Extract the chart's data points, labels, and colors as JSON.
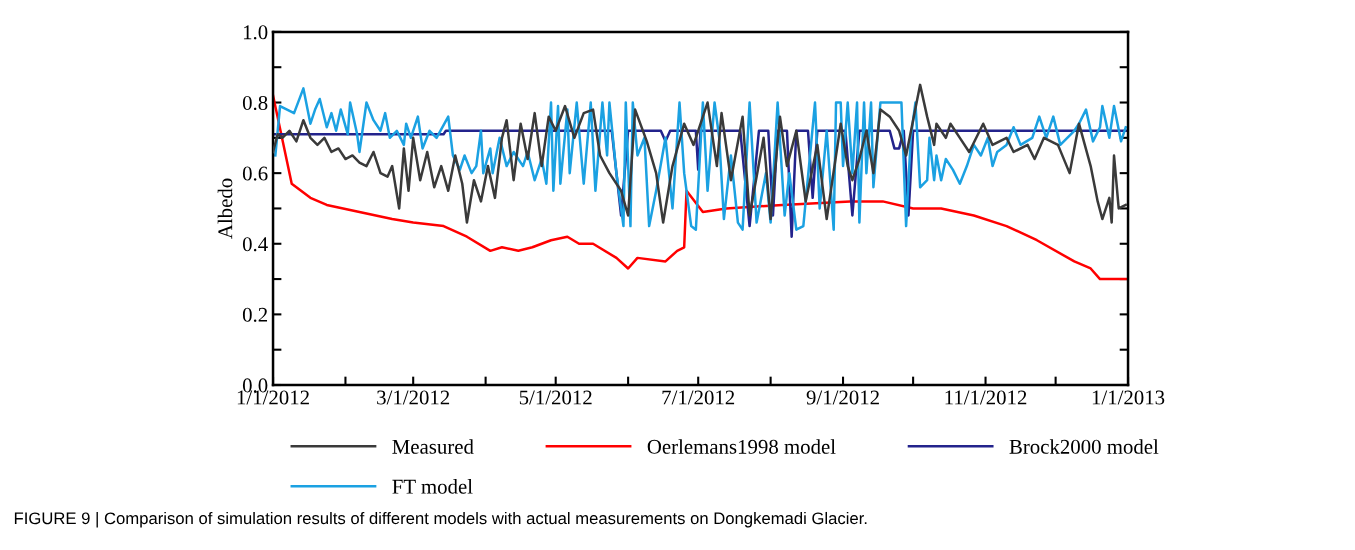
{
  "chart_data": {
    "type": "line",
    "ylabel": "Albedo",
    "xlim": [
      "2012-01-01",
      "2013-01-01"
    ],
    "xticks": [
      {
        "value": "2012-01-01",
        "label": "1/1/2012"
      },
      {
        "value": "2012-02-01",
        "label": null
      },
      {
        "value": "2012-03-01",
        "label": "3/1/2012"
      },
      {
        "value": "2012-04-01",
        "label": null
      },
      {
        "value": "2012-05-01",
        "label": "5/1/2012"
      },
      {
        "value": "2012-06-01",
        "label": null
      },
      {
        "value": "2012-07-01",
        "label": "7/1/2012"
      },
      {
        "value": "2012-08-01",
        "label": null
      },
      {
        "value": "2012-09-01",
        "label": "9/1/2012"
      },
      {
        "value": "2012-10-01",
        "label": null
      },
      {
        "value": "2012-11-01",
        "label": "11/1/2012"
      },
      {
        "value": "2012-12-01",
        "label": null
      },
      {
        "value": "2013-01-01",
        "label": "1/1/2013"
      }
    ],
    "ylim": [
      0.0,
      1.0
    ],
    "yticks": [
      {
        "value": 0.0,
        "label": "0.0"
      },
      {
        "value": 0.1,
        "label": null
      },
      {
        "value": 0.2,
        "label": "0.2"
      },
      {
        "value": 0.3,
        "label": null
      },
      {
        "value": 0.4,
        "label": "0.4"
      },
      {
        "value": 0.5,
        "label": null
      },
      {
        "value": 0.6,
        "label": "0.6"
      },
      {
        "value": 0.7,
        "label": null
      },
      {
        "value": 0.8,
        "label": "0.8"
      },
      {
        "value": 0.9,
        "label": null
      },
      {
        "value": 1.0,
        "label": "1.0"
      }
    ],
    "legend": "bottom",
    "line_style": "solid",
    "annotations": [
      "FIGURE 9 | Comparison of simulation results of different models with actual measurements on Dongkemadi Glacier."
    ],
    "series": [
      {
        "name": "Measured",
        "color": "#3a3a3a",
        "x": [
          "2012-01-01",
          "2012-01-03",
          "2012-01-05",
          "2012-01-08",
          "2012-01-11",
          "2012-01-14",
          "2012-01-17",
          "2012-01-20",
          "2012-01-23",
          "2012-01-26",
          "2012-01-29",
          "2012-02-01",
          "2012-02-04",
          "2012-02-07",
          "2012-02-10",
          "2012-02-13",
          "2012-02-16",
          "2012-02-19",
          "2012-02-21",
          "2012-02-24",
          "2012-02-26",
          "2012-02-28",
          "2012-03-01",
          "2012-03-04",
          "2012-03-07",
          "2012-03-10",
          "2012-03-13",
          "2012-03-16",
          "2012-03-19",
          "2012-03-22",
          "2012-03-24",
          "2012-03-27",
          "2012-03-30",
          "2012-04-02",
          "2012-04-05",
          "2012-04-08",
          "2012-04-10",
          "2012-04-13",
          "2012-04-16",
          "2012-04-19",
          "2012-04-22",
          "2012-04-25",
          "2012-04-28",
          "2012-05-01",
          "2012-05-05",
          "2012-05-09",
          "2012-05-13",
          "2012-05-17",
          "2012-05-20",
          "2012-05-24",
          "2012-05-29",
          "2012-06-01",
          "2012-06-04",
          "2012-06-09",
          "2012-06-13",
          "2012-06-16",
          "2012-06-20",
          "2012-06-25",
          "2012-06-29",
          "2012-07-05",
          "2012-07-09",
          "2012-07-11",
          "2012-07-15",
          "2012-07-20",
          "2012-07-23",
          "2012-07-29",
          "2012-08-01",
          "2012-08-05",
          "2012-08-08",
          "2012-08-12",
          "2012-08-16",
          "2012-08-21",
          "2012-08-25",
          "2012-08-31",
          "2012-09-03",
          "2012-09-05",
          "2012-09-08",
          "2012-09-11",
          "2012-09-14",
          "2012-09-17",
          "2012-09-21",
          "2012-09-25",
          "2012-09-28",
          "2012-10-04",
          "2012-10-07",
          "2012-10-10",
          "2012-10-11",
          "2012-10-15",
          "2012-10-17",
          "2012-10-21",
          "2012-10-25",
          "2012-10-31",
          "2012-11-04",
          "2012-11-10",
          "2012-11-13",
          "2012-11-19",
          "2012-11-22",
          "2012-11-26",
          "2012-12-02",
          "2012-12-07",
          "2012-12-11",
          "2012-12-16",
          "2012-12-19",
          "2012-12-21",
          "2012-12-24",
          "2012-12-25",
          "2012-12-26",
          "2012-12-28",
          "2012-12-31"
        ],
        "values": [
          0.66,
          0.71,
          0.7,
          0.72,
          0.69,
          0.75,
          0.7,
          0.68,
          0.7,
          0.66,
          0.67,
          0.64,
          0.65,
          0.63,
          0.62,
          0.66,
          0.6,
          0.59,
          0.62,
          0.5,
          0.67,
          0.55,
          0.7,
          0.58,
          0.66,
          0.56,
          0.62,
          0.55,
          0.65,
          0.57,
          0.46,
          0.58,
          0.52,
          0.62,
          0.53,
          0.7,
          0.75,
          0.58,
          0.74,
          0.64,
          0.77,
          0.62,
          0.76,
          0.72,
          0.79,
          0.7,
          0.77,
          0.78,
          0.65,
          0.6,
          0.55,
          0.48,
          0.78,
          0.69,
          0.6,
          0.46,
          0.62,
          0.74,
          0.68,
          0.8,
          0.62,
          0.77,
          0.58,
          0.76,
          0.48,
          0.7,
          0.47,
          0.76,
          0.62,
          0.72,
          0.52,
          0.68,
          0.47,
          0.74,
          0.62,
          0.58,
          0.64,
          0.72,
          0.6,
          0.78,
          0.76,
          0.72,
          0.65,
          0.85,
          0.76,
          0.68,
          0.74,
          0.7,
          0.74,
          0.7,
          0.66,
          0.74,
          0.68,
          0.7,
          0.66,
          0.68,
          0.64,
          0.7,
          0.68,
          0.6,
          0.74,
          0.62,
          0.52,
          0.47,
          0.53,
          0.46,
          0.65,
          0.5,
          0.51
        ]
      },
      {
        "name": "Oerlemans1998 model",
        "color": "#ff0000",
        "x": [
          "2012-01-01",
          "2012-01-09",
          "2012-01-17",
          "2012-01-24",
          "2012-02-07",
          "2012-02-21",
          "2012-03-01",
          "2012-03-14",
          "2012-03-24",
          "2012-04-03",
          "2012-04-08",
          "2012-04-15",
          "2012-04-21",
          "2012-04-29",
          "2012-05-06",
          "2012-05-11",
          "2012-05-17",
          "2012-05-27",
          "2012-06-01",
          "2012-06-05",
          "2012-06-17",
          "2012-06-22",
          "2012-06-25",
          "2012-06-26",
          "2012-07-03",
          "2012-07-13",
          "2012-08-06",
          "2012-09-04",
          "2012-09-18",
          "2012-10-01",
          "2012-10-13",
          "2012-10-27",
          "2012-11-10",
          "2012-11-23",
          "2012-12-09",
          "2012-12-16",
          "2012-12-20",
          "2013-01-01"
        ],
        "values": [
          0.82,
          0.57,
          0.53,
          0.51,
          0.49,
          0.47,
          0.46,
          0.45,
          0.42,
          0.38,
          0.39,
          0.38,
          0.39,
          0.41,
          0.42,
          0.4,
          0.4,
          0.36,
          0.33,
          0.36,
          0.35,
          0.38,
          0.39,
          0.55,
          0.49,
          0.5,
          0.51,
          0.52,
          0.52,
          0.5,
          0.5,
          0.48,
          0.45,
          0.41,
          0.35,
          0.33,
          0.3,
          0.3
        ]
      },
      {
        "name": "Brock2000 model",
        "color": "#23238c",
        "x": [
          "2012-01-01",
          "2012-03-14",
          "2012-03-15",
          "2012-05-25",
          "2012-05-29",
          "2012-06-01",
          "2012-06-15",
          "2012-06-17",
          "2012-06-19",
          "2012-06-30",
          "2012-07-01",
          "2012-07-02",
          "2012-07-19",
          "2012-07-23",
          "2012-07-27",
          "2012-07-31",
          "2012-08-02",
          "2012-08-04",
          "2012-08-08",
          "2012-08-10",
          "2012-08-12",
          "2012-08-17",
          "2012-08-19",
          "2012-08-21",
          "2012-09-02",
          "2012-09-05",
          "2012-09-08",
          "2012-09-21",
          "2012-09-23",
          "2012-09-25",
          "2012-09-27",
          "2012-09-29",
          "2012-10-01",
          "2013-01-01"
        ],
        "values": [
          0.71,
          0.71,
          0.72,
          0.72,
          0.48,
          0.72,
          0.72,
          0.69,
          0.72,
          0.72,
          0.61,
          0.72,
          0.72,
          0.45,
          0.72,
          0.72,
          0.48,
          0.72,
          0.72,
          0.42,
          0.72,
          0.72,
          0.53,
          0.72,
          0.72,
          0.48,
          0.72,
          0.72,
          0.67,
          0.67,
          0.72,
          0.48,
          0.72,
          0.72
        ]
      },
      {
        "name": "FT model",
        "color": "#1ba1e2",
        "x": [
          "2012-01-02",
          "2012-01-04",
          "2012-01-10",
          "2012-01-14",
          "2012-01-17",
          "2012-01-19",
          "2012-01-21",
          "2012-01-24",
          "2012-01-26",
          "2012-01-28",
          "2012-01-30",
          "2012-02-02",
          "2012-02-03",
          "2012-02-06",
          "2012-02-07",
          "2012-02-10",
          "2012-02-13",
          "2012-02-16",
          "2012-02-18",
          "2012-02-20",
          "2012-02-23",
          "2012-02-26",
          "2012-02-27",
          "2012-02-29",
          "2012-03-03",
          "2012-03-05",
          "2012-03-08",
          "2012-03-11",
          "2012-03-16",
          "2012-03-18",
          "2012-03-21",
          "2012-03-23",
          "2012-03-26",
          "2012-03-28",
          "2012-03-30",
          "2012-03-31",
          "2012-04-03",
          "2012-04-04",
          "2012-04-07",
          "2012-04-10",
          "2012-04-13",
          "2012-04-17",
          "2012-04-19",
          "2012-04-22",
          "2012-04-25",
          "2012-04-27",
          "2012-04-29",
          "2012-04-30",
          "2012-05-02",
          "2012-05-03",
          "2012-05-06",
          "2012-05-07",
          "2012-05-10",
          "2012-05-13",
          "2012-05-16",
          "2012-05-18",
          "2012-05-21",
          "2012-05-23",
          "2012-05-24",
          "2012-05-27",
          "2012-05-30",
          "2012-05-31",
          "2012-06-02",
          "2012-06-03",
          "2012-06-05",
          "2012-06-08",
          "2012-06-10",
          "2012-06-13",
          "2012-06-17",
          "2012-06-20",
          "2012-06-23",
          "2012-06-25",
          "2012-06-28",
          "2012-06-30",
          "2012-07-03",
          "2012-07-05",
          "2012-07-08",
          "2012-07-10",
          "2012-07-12",
          "2012-07-15",
          "2012-07-18",
          "2012-07-20",
          "2012-07-23",
          "2012-07-26",
          "2012-07-30",
          "2012-08-01",
          "2012-08-04",
          "2012-08-07",
          "2012-08-09",
          "2012-08-12",
          "2012-08-15",
          "2012-08-20",
          "2012-08-22",
          "2012-08-25",
          "2012-08-28",
          "2012-08-29",
          "2012-08-31",
          "2012-09-01",
          "2012-09-03",
          "2012-09-05",
          "2012-09-07",
          "2012-09-08",
          "2012-09-10",
          "2012-09-11",
          "2012-09-13",
          "2012-09-14",
          "2012-09-17",
          "2012-09-26",
          "2012-09-28",
          "2012-09-30",
          "2012-10-02",
          "2012-10-04",
          "2012-10-07",
          "2012-10-08",
          "2012-10-10",
          "2012-10-11",
          "2012-10-13",
          "2012-10-15",
          "2012-10-18",
          "2012-10-21",
          "2012-10-24",
          "2012-10-27",
          "2012-10-30",
          "2012-11-02",
          "2012-11-04",
          "2012-11-06",
          "2012-11-10",
          "2012-11-13",
          "2012-11-16",
          "2012-11-21",
          "2012-11-24",
          "2012-11-27",
          "2012-11-30",
          "2012-12-03",
          "2012-12-09",
          "2012-12-11",
          "2012-12-14",
          "2012-12-17",
          "2012-12-20",
          "2012-12-21",
          "2012-12-24",
          "2012-12-26",
          "2012-12-29",
          "2012-12-31"
        ],
        "values": [
          0.65,
          0.79,
          0.77,
          0.84,
          0.74,
          0.78,
          0.81,
          0.73,
          0.77,
          0.72,
          0.78,
          0.71,
          0.8,
          0.71,
          0.66,
          0.8,
          0.75,
          0.72,
          0.77,
          0.7,
          0.72,
          0.68,
          0.74,
          0.7,
          0.76,
          0.67,
          0.72,
          0.7,
          0.76,
          0.65,
          0.61,
          0.65,
          0.6,
          0.62,
          0.72,
          0.6,
          0.67,
          0.6,
          0.7,
          0.62,
          0.66,
          0.62,
          0.66,
          0.58,
          0.64,
          0.57,
          0.8,
          0.55,
          0.79,
          0.57,
          0.78,
          0.6,
          0.8,
          0.57,
          0.8,
          0.55,
          0.8,
          0.65,
          0.8,
          0.6,
          0.45,
          0.8,
          0.45,
          0.8,
          0.65,
          0.7,
          0.45,
          0.55,
          0.7,
          0.5,
          0.8,
          0.6,
          0.45,
          0.44,
          0.8,
          0.55,
          0.8,
          0.7,
          0.47,
          0.65,
          0.46,
          0.44,
          0.8,
          0.46,
          0.6,
          0.46,
          0.8,
          0.48,
          0.6,
          0.44,
          0.45,
          0.8,
          0.5,
          0.72,
          0.44,
          0.8,
          0.8,
          0.62,
          0.8,
          0.6,
          0.8,
          0.46,
          0.8,
          0.6,
          0.8,
          0.56,
          0.8,
          0.8,
          0.45,
          0.7,
          0.8,
          0.56,
          0.58,
          0.7,
          0.58,
          0.65,
          0.58,
          0.64,
          0.61,
          0.57,
          0.62,
          0.68,
          0.65,
          0.7,
          0.62,
          0.66,
          0.68,
          0.73,
          0.68,
          0.7,
          0.76,
          0.7,
          0.76,
          0.68,
          0.72,
          0.74,
          0.78,
          0.69,
          0.73,
          0.79,
          0.7,
          0.79,
          0.69,
          0.73
        ]
      }
    ]
  }
}
